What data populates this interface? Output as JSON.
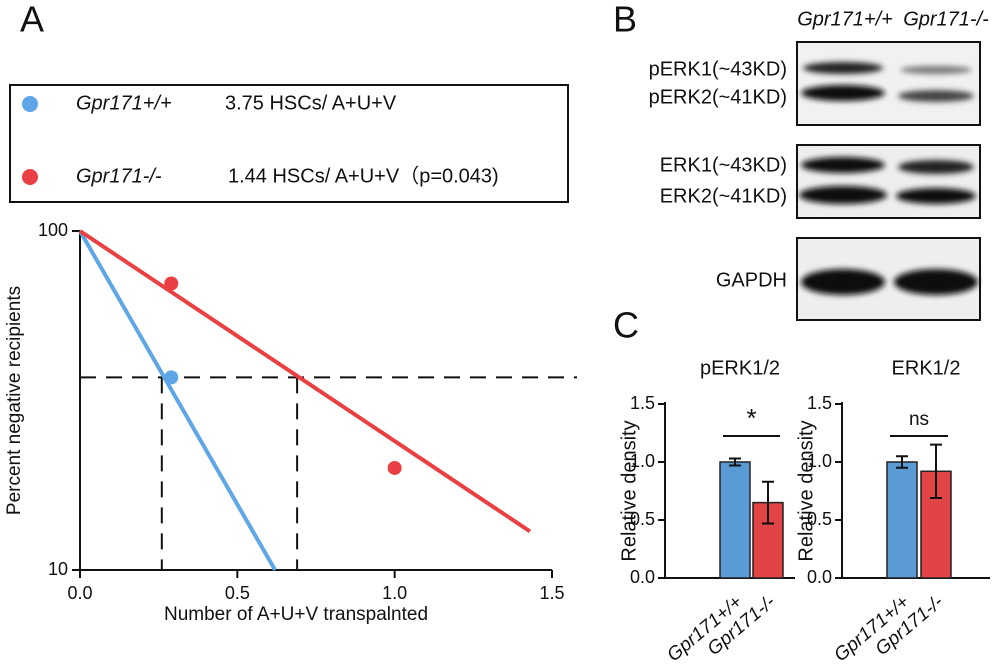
{
  "panel_labels": [
    "A",
    "B",
    "C"
  ],
  "blot": {
    "genotypes": [
      "Gpr171+/+",
      "Gpr171-/-"
    ],
    "bands": [
      "pERK1(~43KD)",
      "pERK2(~41KD)",
      "ERK1(~43KD)",
      "ERK2(~41KD)",
      "GAPDH"
    ]
  },
  "chart_data": [
    {
      "type": "line",
      "log_scale_y": true,
      "x_label": "Number of A+U+V transpalnted",
      "y_label": "Percent negative recipients",
      "xlim": [
        0,
        1.5
      ],
      "xticks": [
        {
          "value": 0,
          "label": "0.0"
        },
        0.5,
        {
          "value": 1,
          "label": "1.0"
        },
        1.5
      ],
      "ylim": [
        10,
        100
      ],
      "yticks": [
        10,
        100
      ],
      "reference_y": 37,
      "reference_x": [
        0.26,
        0.69
      ],
      "series": [
        {
          "name": "Gpr171+/+",
          "color": "#5ea6e6",
          "estimate": "3.75 HSCs/ A+U+V",
          "x": [
            0,
            0.62
          ],
          "values": [
            100,
            10
          ],
          "points_x": [
            0.29
          ],
          "points": [
            37
          ]
        },
        {
          "name": "Gpr171-/-",
          "color": "#ea4044",
          "estimate": "1.44 HSCs/ A+U+V（p=0.043)",
          "x": [
            0,
            1.43
          ],
          "values": [
            100,
            13
          ],
          "points_x": [
            0.29,
            1.0
          ],
          "points": [
            70,
            20
          ]
        }
      ]
    },
    {
      "type": "bar",
      "title": "pERK1/2",
      "y_label": "Relative density",
      "categories": [
        "Gpr171+/+",
        "Gpr171-/-"
      ],
      "colors": [
        "#5b9bd5",
        "#e04444"
      ],
      "values": [
        1.0,
        0.65
      ],
      "errors": [
        0.03,
        0.18
      ],
      "significance": "*",
      "ylim": [
        0,
        1.5
      ],
      "yticks": [
        {
          "value": 0,
          "label": "0.0"
        },
        0.5,
        {
          "value": 1,
          "label": "1.0"
        },
        1.5
      ]
    },
    {
      "type": "bar",
      "title": "ERK1/2",
      "y_label": "Relative density",
      "categories": [
        "Gpr171+/+",
        "Gpr171-/-"
      ],
      "colors": [
        "#5b9bd5",
        "#e04444"
      ],
      "values": [
        1.0,
        0.92
      ],
      "errors": [
        0.05,
        0.23
      ],
      "significance": "ns",
      "ylim": [
        0,
        1.5
      ],
      "yticks": [
        {
          "value": 0,
          "label": "0.0"
        },
        0.5,
        {
          "value": 1,
          "label": "1.0"
        },
        1.5
      ]
    }
  ]
}
